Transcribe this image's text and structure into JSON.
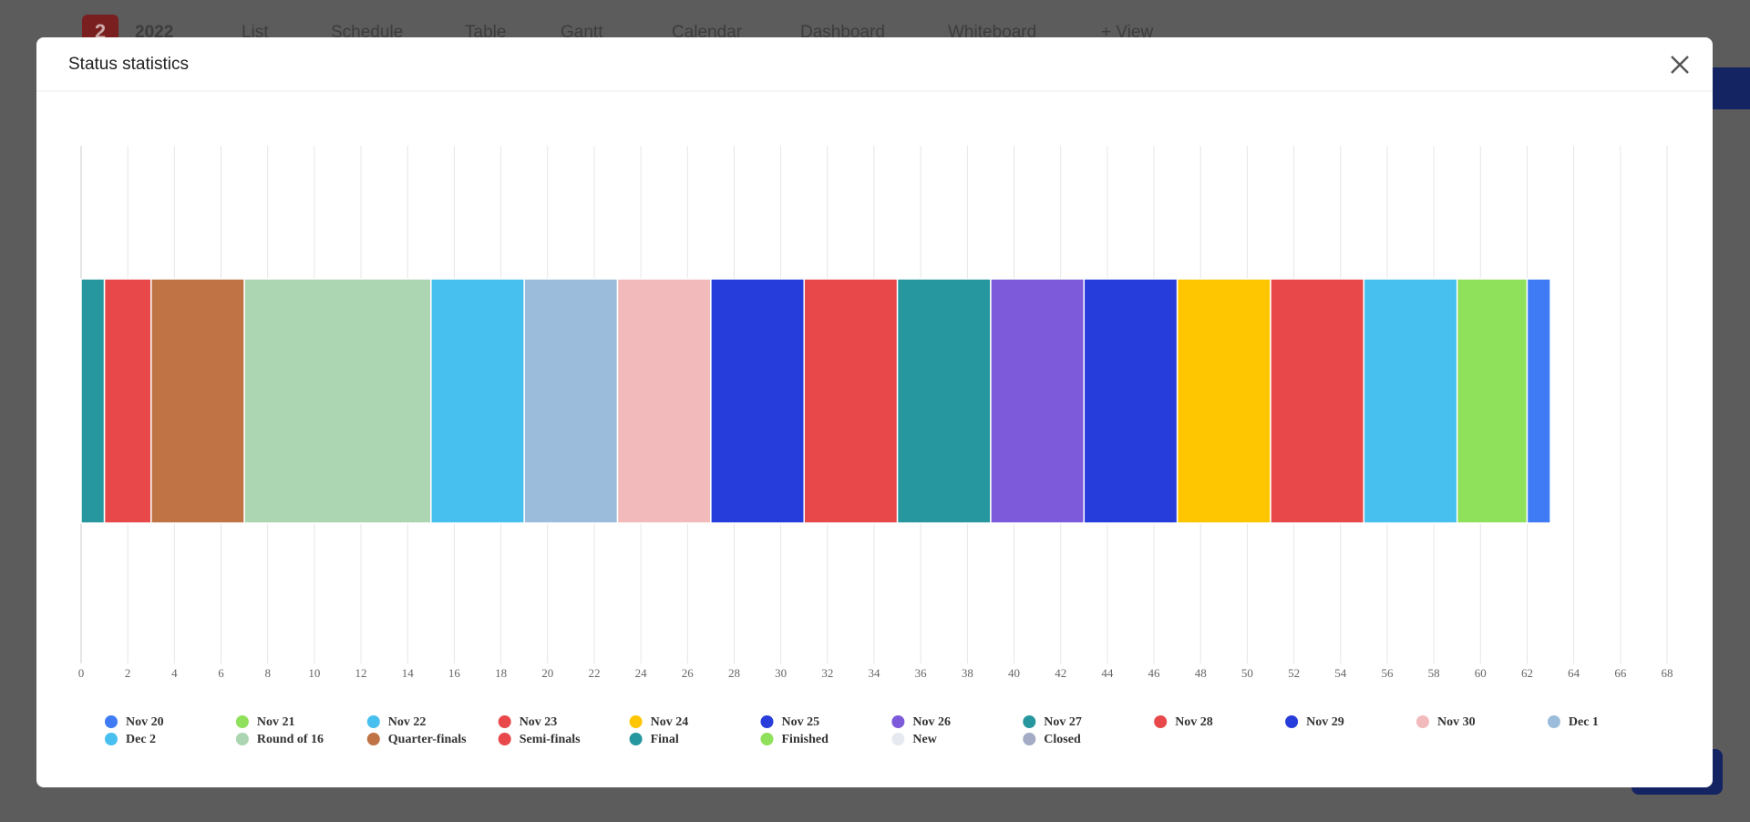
{
  "background": {
    "badge": "2",
    "project": "2022",
    "views": [
      "List",
      "Schedule",
      "Table",
      "Gantt",
      "Calendar",
      "Dashboard",
      "Whiteboard",
      "+ View"
    ]
  },
  "chart_data": {
    "type": "bar",
    "orientation": "horizontal",
    "stacked": true,
    "title": "Status statistics",
    "xlim": [
      0,
      68
    ],
    "xticks": [
      0,
      2,
      4,
      6,
      8,
      10,
      12,
      14,
      16,
      18,
      20,
      22,
      24,
      26,
      28,
      30,
      32,
      34,
      36,
      38,
      40,
      42,
      44,
      46,
      48,
      50,
      52,
      54,
      56,
      58,
      60,
      62,
      64,
      66,
      68
    ],
    "grid": true,
    "legend": "bottom",
    "series": [
      {
        "name": "Nov 20",
        "color": "#3e7bf4",
        "values": [
          1
        ]
      },
      {
        "name": "Nov 21",
        "color": "#8fe05a",
        "values": [
          3
        ]
      },
      {
        "name": "Nov 22",
        "color": "#48c0ef",
        "values": [
          4
        ]
      },
      {
        "name": "Nov 23",
        "color": "#e8484a",
        "values": [
          4
        ]
      },
      {
        "name": "Nov 24",
        "color": "#fec601",
        "values": [
          4
        ]
      },
      {
        "name": "Nov 25",
        "color": "#273ddb",
        "values": [
          4
        ]
      },
      {
        "name": "Nov 26",
        "color": "#7c5ad9",
        "values": [
          4
        ]
      },
      {
        "name": "Nov 27",
        "color": "#26979e",
        "values": [
          4
        ]
      },
      {
        "name": "Nov 28",
        "color": "#e8484a",
        "values": [
          4
        ]
      },
      {
        "name": "Nov 29",
        "color": "#273ddb",
        "values": [
          4
        ]
      },
      {
        "name": "Nov 30",
        "color": "#f3babc",
        "values": [
          4
        ]
      },
      {
        "name": "Dec 1",
        "color": "#9bbddb",
        "values": [
          4
        ]
      },
      {
        "name": "Dec 2",
        "color": "#48c0ef",
        "values": [
          4
        ]
      },
      {
        "name": "Round of 16",
        "color": "#acd5b1",
        "values": [
          8
        ]
      },
      {
        "name": "Quarter-finals",
        "color": "#c07445",
        "values": [
          4
        ]
      },
      {
        "name": "Semi-finals",
        "color": "#e8484a",
        "values": [
          2
        ]
      },
      {
        "name": "Final",
        "color": "#26979e",
        "values": [
          1
        ]
      },
      {
        "name": "Finished",
        "color": "#8fe05a",
        "values": [
          0
        ]
      },
      {
        "name": "New",
        "color": "#e6e9ef",
        "values": [
          0
        ]
      },
      {
        "name": "Closed",
        "color": "#a4abc4",
        "values": [
          0
        ]
      }
    ]
  }
}
